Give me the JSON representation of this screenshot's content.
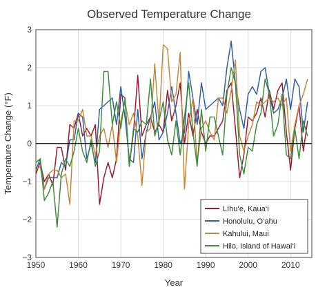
{
  "chart_data": {
    "type": "line",
    "title": "Observed Temperature Change",
    "xlabel": "Year",
    "ylabel": "Temperature Change (°F)",
    "xlim": [
      1950,
      2015
    ],
    "ylim": [
      -3,
      3
    ],
    "xticks": [
      "1950",
      "1960",
      "1970",
      "1980",
      "1990",
      "2000",
      "2010"
    ],
    "yticks": [
      "3",
      "2",
      "1",
      "0",
      "−1",
      "−2",
      "−3"
    ],
    "grid": true,
    "legend_position": "bottom-right",
    "x": [
      1950,
      1951,
      1952,
      1953,
      1954,
      1955,
      1956,
      1957,
      1958,
      1959,
      1960,
      1961,
      1962,
      1963,
      1964,
      1965,
      1966,
      1967,
      1968,
      1969,
      1970,
      1971,
      1972,
      1973,
      1974,
      1975,
      1976,
      1977,
      1978,
      1979,
      1980,
      1981,
      1982,
      1983,
      1984,
      1985,
      1986,
      1987,
      1988,
      1989,
      1990,
      1991,
      1992,
      1993,
      1994,
      1995,
      1996,
      1997,
      1998,
      1999,
      2000,
      2001,
      2002,
      2003,
      2004,
      2005,
      2006,
      2007,
      2008,
      2009,
      2010,
      2011,
      2012,
      2013,
      2014
    ],
    "series": [
      {
        "name": "Līhu‘e, Kaua‘i",
        "color": "#9b1b30",
        "values": [
          -0.8,
          -0.5,
          -1.0,
          -0.8,
          -1.1,
          -0.1,
          -0.1,
          -0.7,
          0.5,
          0.4,
          0.8,
          0.2,
          0.4,
          0.2,
          0.5,
          -1.6,
          -0.9,
          -0.5,
          -0.9,
          -0.4,
          1.3,
          1.2,
          -0.6,
          0.3,
          1.8,
          0.2,
          0.5,
          0.7,
          0.3,
          0.5,
          0.3,
          1.4,
          0.6,
          1.0,
          1.6,
          0.0,
          0.8,
          0.2,
          0.9,
          0.3,
          0.0,
          0.2,
          0.2,
          0.4,
          0.6,
          1.4,
          1.6,
          0.4,
          -0.9,
          -0.3,
          0.7,
          0.6,
          0.8,
          1.2,
          0.7,
          1.4,
          0.9,
          1.4,
          1.6,
          0.3,
          -0.7,
          0.4,
          1.0,
          -0.2,
          0.6
        ]
      },
      {
        "name": "Honolulu, O‘ahu",
        "color": "#2f5fa8",
        "values": [
          -0.7,
          -0.4,
          -1.2,
          -0.9,
          -0.9,
          -0.9,
          -0.5,
          -0.6,
          0.1,
          0.1,
          0.8,
          0.7,
          -0.4,
          0.0,
          -0.5,
          0.9,
          1.0,
          1.1,
          1.2,
          0.5,
          1.5,
          0.7,
          -0.4,
          -0.5,
          0.9,
          -0.4,
          0.3,
          0.7,
          1.1,
          0.1,
          0.3,
          0.8,
          1.5,
          0.8,
          0.0,
          0.3,
          1.9,
          1.2,
          0.5,
          1.6,
          0.9,
          1.0,
          1.1,
          1.2,
          1.0,
          2.0,
          2.7,
          1.6,
          0.9,
          0.4,
          1.3,
          1.5,
          1.3,
          1.9,
          2.0,
          1.3,
          0.8,
          0.9,
          1.2,
          1.7,
          0.9,
          1.7,
          1.5,
          0.3,
          1.1
        ]
      },
      {
        "name": "Kahului, Maui",
        "color": "#c8863a",
        "values": [
          -0.7,
          -0.6,
          -1.2,
          -0.8,
          -0.7,
          -0.7,
          -0.9,
          -0.8,
          -1.6,
          0.6,
          0.6,
          0.9,
          0.2,
          0.2,
          -0.3,
          0.2,
          0.4,
          -0.1,
          0.5,
          -0.5,
          0.6,
          1.1,
          0.5,
          0.8,
          0.2,
          -1.1,
          0.3,
          0.4,
          2.1,
          0.5,
          2.6,
          2.5,
          1.1,
          1.3,
          2.4,
          -1.2,
          0.5,
          1.2,
          -0.5,
          0.4,
          0.6,
          0.3,
          0.1,
          1.2,
          1.2,
          0.8,
          1.4,
          2.2,
          0.2,
          -0.2,
          0.2,
          0.5,
          1.1,
          1.0,
          1.1,
          1.2,
          1.1,
          1.2,
          1.0,
          1.2,
          -0.2,
          0.5,
          1.0,
          1.3,
          1.7
        ]
      },
      {
        "name": "Hilo, Island of Hawai‘i",
        "color": "#3c8f3c",
        "values": [
          -0.5,
          -0.4,
          -1.5,
          -1.3,
          -1.0,
          -2.2,
          -0.8,
          -0.4,
          -0.6,
          -0.2,
          0.4,
          -0.2,
          -0.5,
          0.1,
          -0.6,
          -0.2,
          1.9,
          1.9,
          0.5,
          1.1,
          0.4,
          1.2,
          -0.6,
          0.4,
          0.3,
          0.6,
          0.5,
          1.7,
          0.2,
          0.6,
          1.1,
          0.1,
          -0.3,
          0.6,
          -0.3,
          0.7,
          1.6,
          0.3,
          -0.6,
          0.9,
          -0.2,
          0.7,
          0.7,
          0.2,
          -0.3,
          1.3,
          2.0,
          1.6,
          -0.3,
          -0.8,
          -0.1,
          -0.2,
          0.5,
          0.8,
          1.7,
          1.3,
          0.2,
          0.5,
          1.3,
          -0.3,
          -0.4,
          0.4,
          -0.4,
          0.6,
          0.2
        ]
      }
    ]
  }
}
